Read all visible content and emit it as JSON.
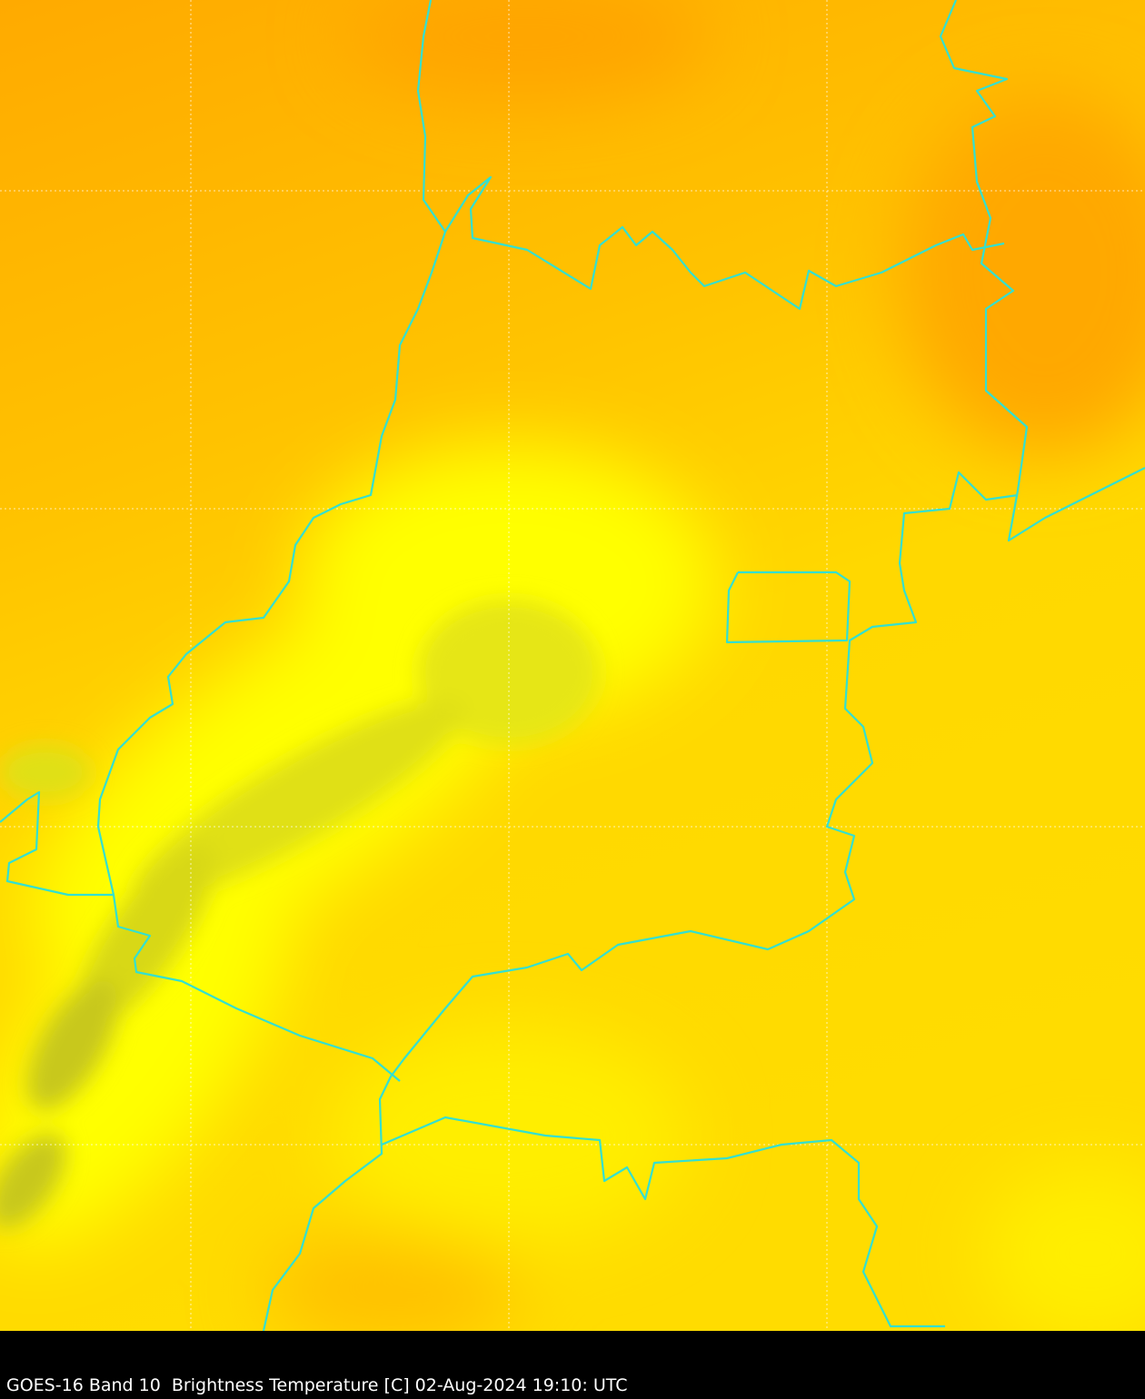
{
  "caption": "GOES-16 Band 10  Brightness Temperature [C] 02-Aug-2024 19:10: UTC",
  "colors": {
    "warm": "#ffad00",
    "mid": "#ffd800",
    "cool": "#ffff00",
    "coldest": "#c8c81e",
    "borders": "#33e0d0",
    "gridlines": "#ffffff",
    "background": "#000000"
  }
}
